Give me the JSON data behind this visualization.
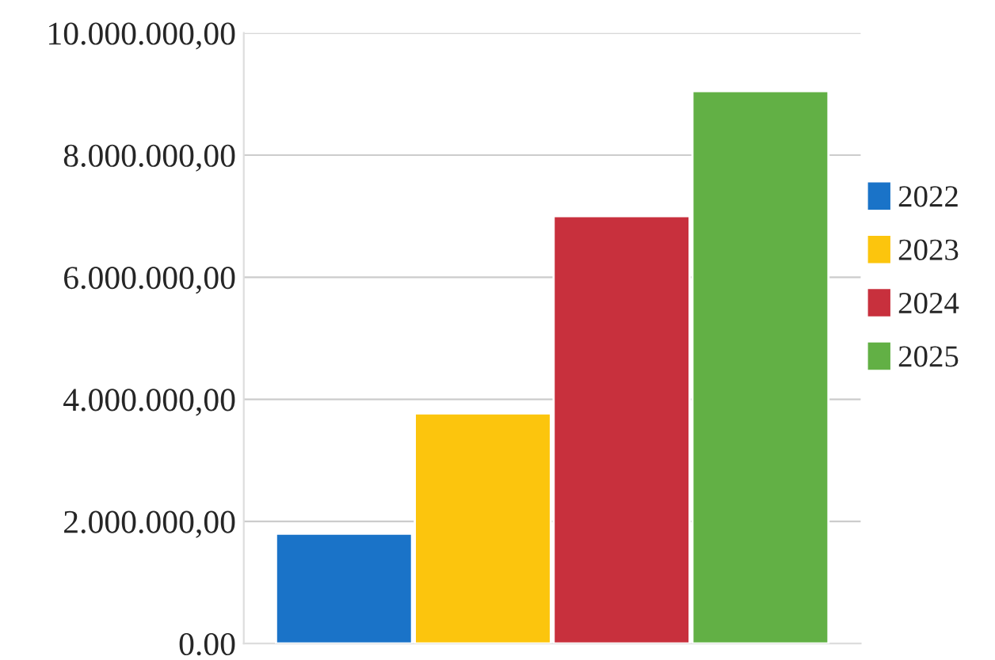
{
  "chart_data": {
    "type": "bar",
    "categories": [
      null
    ],
    "series": [
      {
        "name": "2022",
        "color": "#1a73c8",
        "values": [
          1800000
        ]
      },
      {
        "name": "2023",
        "color": "#fcc50d",
        "values": [
          3770000
        ]
      },
      {
        "name": "2024",
        "color": "#c8303d",
        "values": [
          7000000
        ]
      },
      {
        "name": "2025",
        "color": "#62b045",
        "values": [
          9050000
        ]
      }
    ],
    "ylim": [
      0,
      10000000
    ],
    "yticks": [
      {
        "value": 0,
        "label": "0.00"
      },
      {
        "value": 2000000,
        "label": "2.000.000,00"
      },
      {
        "value": 4000000,
        "label": "4.000.000,00"
      },
      {
        "value": 6000000,
        "label": "6.000.000,00"
      },
      {
        "value": 8000000,
        "label": "8.000.000,00"
      },
      {
        "value": 10000000,
        "label": "10.000.000,00"
      }
    ],
    "grid": "y",
    "legend": "right",
    "tick_labels": "y"
  }
}
